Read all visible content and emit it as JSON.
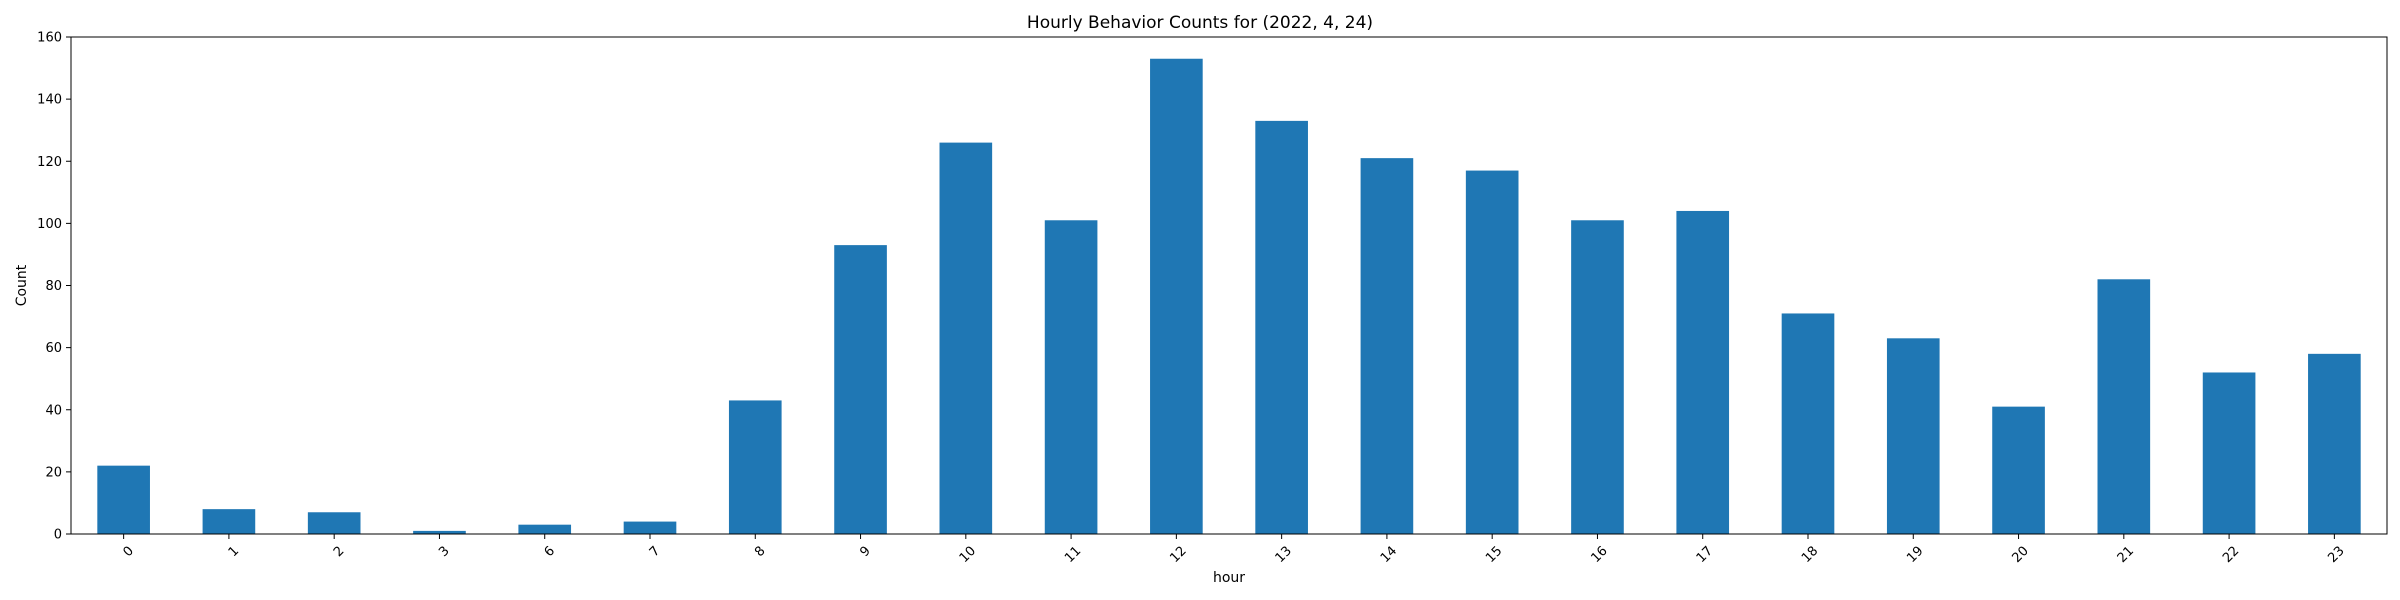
{
  "chart_data": {
    "type": "bar",
    "title": "Hourly Behavior Counts for (2022, 4, 24)",
    "xlabel": "hour",
    "ylabel": "Count",
    "categories": [
      "0",
      "1",
      "2",
      "3",
      "6",
      "7",
      "8",
      "9",
      "10",
      "11",
      "12",
      "13",
      "14",
      "15",
      "16",
      "17",
      "18",
      "19",
      "20",
      "21",
      "22",
      "23"
    ],
    "values": [
      22,
      8,
      7,
      1,
      3,
      4,
      43,
      93,
      126,
      101,
      153,
      133,
      121,
      117,
      101,
      104,
      71,
      63,
      41,
      82,
      52,
      58
    ],
    "ylim": [
      0,
      160
    ],
    "yticks": [
      "0",
      "20",
      "40",
      "60",
      "80",
      "100",
      "120",
      "140",
      "160"
    ],
    "bar_color": "#1f77b4",
    "grid": false,
    "legend": false
  }
}
